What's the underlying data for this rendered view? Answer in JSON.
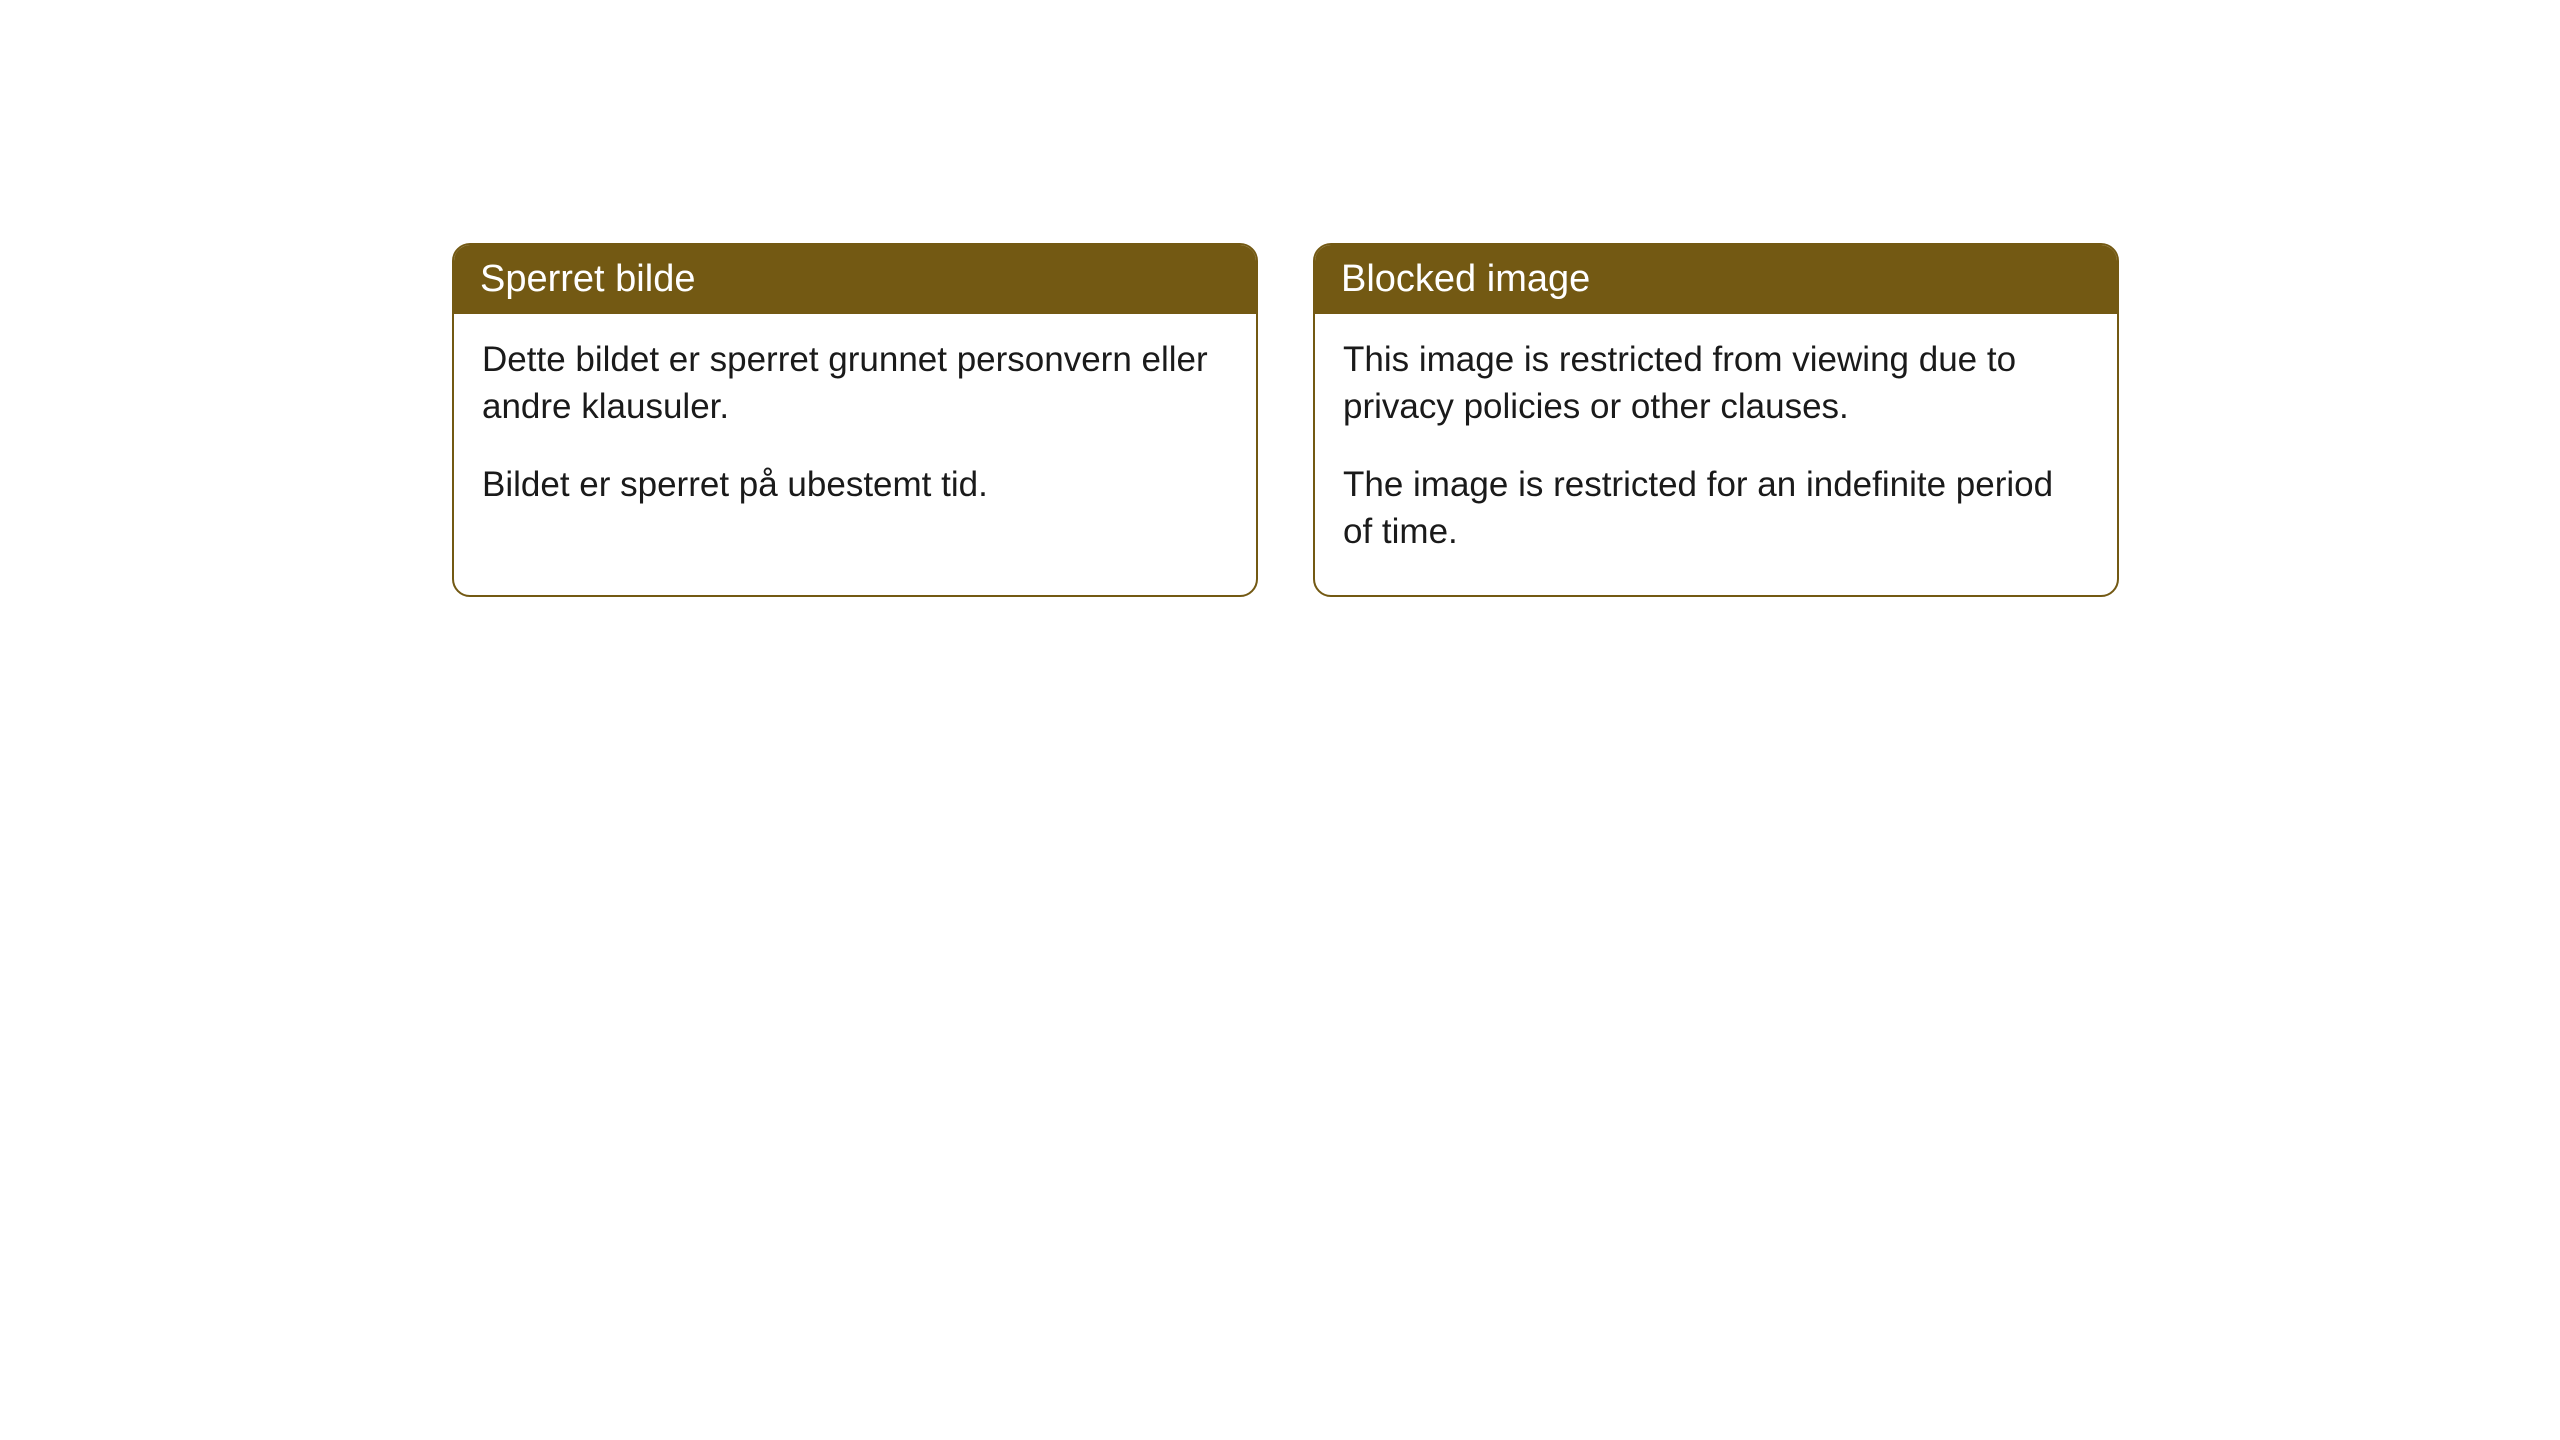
{
  "cards": {
    "norwegian": {
      "title": "Sperret bilde",
      "paragraph1": "Dette bildet er sperret grunnet personvern eller andre klausuler.",
      "paragraph2": "Bildet er sperret på ubestemt tid."
    },
    "english": {
      "title": "Blocked image",
      "paragraph1": "This image is restricted from viewing due to privacy policies or other clauses.",
      "paragraph2": "The image is restricted for an indefinite period of time."
    }
  },
  "style": {
    "header_background": "#735913",
    "header_text_color": "#ffffff",
    "border_color": "#735913",
    "body_background": "#ffffff",
    "body_text_color": "#1a1a1a",
    "border_radius": 18,
    "header_fontsize": 38,
    "body_fontsize": 35
  }
}
